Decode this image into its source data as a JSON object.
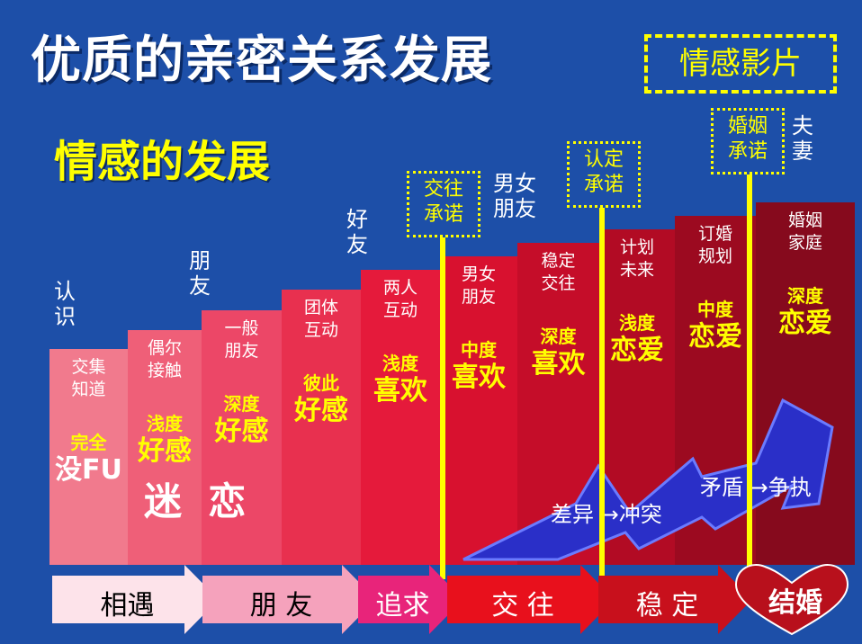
{
  "title": "优质的亲密关系发展",
  "subtitle": "情感的发展",
  "film_tag": "情感影片",
  "stage_labels": [
    "认\n识",
    "朋\n友",
    "好\n友",
    "男女\n朋友",
    "夫\n妻"
  ],
  "commitments": [
    "交往\n承诺",
    "认定\n承诺",
    "婚姻\n承诺"
  ],
  "columns": [
    {
      "desc": "交集\n知道",
      "label": "完全",
      "big": "没FU",
      "color": "#f17a8d"
    },
    {
      "desc": "偶尔\n接触",
      "label": "浅度",
      "big": "好感",
      "color": "#ef5f78"
    },
    {
      "desc": "一般\n朋友",
      "label": "深度",
      "big": "好感",
      "color": "#ec4767"
    },
    {
      "desc": "团体\n互动",
      "label": "彼此",
      "big": "好感",
      "color": "#e8304f"
    },
    {
      "desc": "两人\n互动",
      "label": "浅度",
      "big": "喜欢",
      "color": "#e51a3b"
    },
    {
      "desc": "男女\n朋友",
      "label": "中度",
      "big": "喜欢",
      "color": "#d8112f"
    },
    {
      "desc": "稳定\n交往",
      "label": "深度",
      "big": "喜欢",
      "color": "#c50d29"
    },
    {
      "desc": "计划\n未来",
      "label": "浅度",
      "big": "恋爱",
      "color": "#b20b24"
    },
    {
      "desc": "订婚\n规划",
      "label": "中度",
      "big": "恋爱",
      "color": "#9c0a20"
    },
    {
      "desc": "婚姻\n家庭",
      "label": "深度",
      "big": "恋爱",
      "color": "#860a1d"
    }
  ],
  "infatuation": "迷  恋",
  "conflicts": {
    "first": "差异 →冲突",
    "second": "矛盾 →争执"
  },
  "arrows": [
    {
      "label": "相遇",
      "color": "#fde3ea",
      "text_color": "#000000"
    },
    {
      "label": "朋 友",
      "color": "#f5a2bc",
      "text_color": "#000000"
    },
    {
      "label": "追求",
      "color": "#e8247a",
      "text_color": "#ffffff"
    },
    {
      "label": "交  往",
      "color": "#e8101c",
      "text_color": "#ffffff"
    },
    {
      "label": "稳  定",
      "color": "#c8101c",
      "text_color": "#ffffff"
    },
    {
      "label": "结婚",
      "color": "#b8101c",
      "text_color": "#ffffff"
    }
  ]
}
